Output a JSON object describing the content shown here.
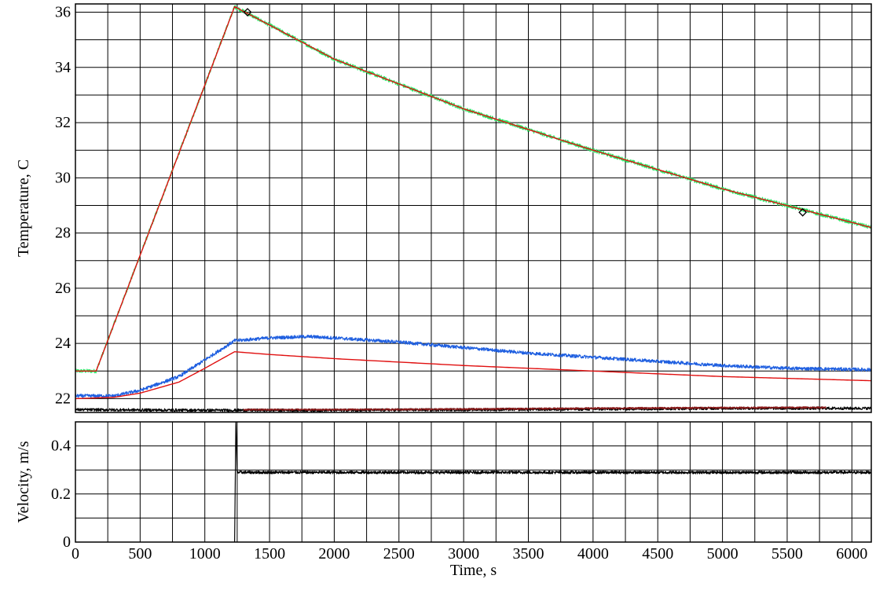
{
  "chart_data": [
    {
      "type": "line",
      "panel": "temperature",
      "title": "",
      "xlabel": "",
      "ylabel": "Temperature, C",
      "xlim": [
        0,
        6150
      ],
      "ylim": [
        21.5,
        36.3
      ],
      "x_ticks": [
        0,
        500,
        1000,
        1500,
        2000,
        2500,
        3000,
        3500,
        4000,
        4500,
        5000,
        5500,
        6000
      ],
      "y_ticks": [
        22,
        24,
        26,
        28,
        30,
        32,
        34,
        36
      ],
      "x_grid_step": 250,
      "y_grid_step": 1,
      "grid": true,
      "series": [
        {
          "color": "#2ee86a",
          "noise": 0.07,
          "x": [
            0,
            160,
            1230,
            2000,
            3000,
            4000,
            5000,
            6150
          ],
          "y": [
            23.0,
            23.0,
            36.2,
            34.3,
            32.5,
            31.0,
            29.6,
            28.2
          ]
        },
        {
          "color": "#e01010",
          "noise": 0,
          "x": [
            0,
            160,
            1230,
            2000,
            3000,
            4000,
            5000,
            6150
          ],
          "y": [
            23.0,
            23.0,
            36.2,
            34.3,
            32.5,
            31.0,
            29.6,
            28.2
          ]
        },
        {
          "color": "#1f5fe0",
          "noise": 0.06,
          "x": [
            0,
            300,
            500,
            800,
            1230,
            1500,
            1800,
            2000,
            2500,
            3000,
            3500,
            4000,
            4500,
            5000,
            5500,
            6150
          ],
          "y": [
            22.1,
            22.1,
            22.3,
            22.8,
            24.1,
            24.2,
            24.25,
            24.2,
            24.05,
            23.85,
            23.65,
            23.5,
            23.35,
            23.2,
            23.1,
            23.05
          ]
        },
        {
          "color": "#e01010",
          "noise": 0,
          "x": [
            0,
            300,
            500,
            800,
            1000,
            1230,
            1500,
            2000,
            3000,
            4000,
            5000,
            6150
          ],
          "y": [
            22.0,
            22.05,
            22.2,
            22.6,
            23.1,
            23.7,
            23.6,
            23.45,
            23.2,
            23.0,
            22.8,
            22.65
          ]
        },
        {
          "color": "#000000",
          "noise": 0.05,
          "x": [
            0,
            1000,
            2000,
            3000,
            4000,
            5000,
            6150
          ],
          "y": [
            21.6,
            21.58,
            21.58,
            21.6,
            21.62,
            21.65,
            21.65
          ]
        },
        {
          "color": "#8b1a1a",
          "noise": 0.03,
          "x": [
            1300,
            2000,
            3000,
            4000,
            5000,
            5800
          ],
          "y": [
            21.6,
            21.6,
            21.62,
            21.65,
            21.67,
            21.68
          ]
        }
      ],
      "markers": [
        {
          "shape": "diamond",
          "x": 1330,
          "y": 36.0
        },
        {
          "shape": "diamond",
          "x": 5620,
          "y": 28.75
        }
      ]
    },
    {
      "type": "line",
      "panel": "velocity",
      "title": "",
      "xlabel": "Time, s",
      "ylabel": "Velocity, m/s",
      "xlim": [
        0,
        6150
      ],
      "ylim": [
        0,
        0.5
      ],
      "x_ticks": [
        0,
        500,
        1000,
        1500,
        2000,
        2500,
        3000,
        3500,
        4000,
        4500,
        5000,
        5500,
        6000
      ],
      "y_ticks": [
        0,
        0.2,
        0.4
      ],
      "x_grid_step": 250,
      "y_grid_step": 0.1,
      "grid": true,
      "series": [
        {
          "color": "#000000",
          "noise": 0.006,
          "x": [
            1230,
            1240,
            1250,
            6150
          ],
          "y": [
            0,
            0.5,
            0.29,
            0.29
          ]
        }
      ]
    }
  ]
}
